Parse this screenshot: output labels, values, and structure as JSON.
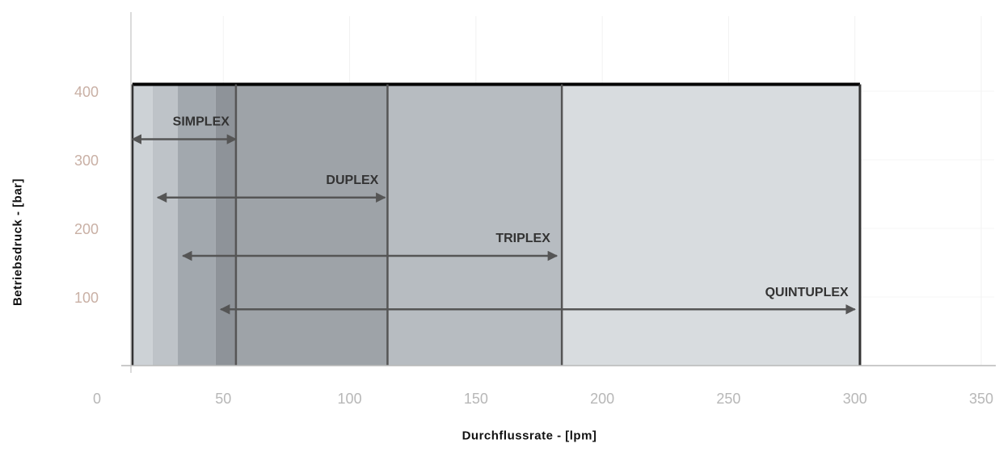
{
  "chart_data": {
    "type": "range",
    "title": "",
    "xlabel": "Durchflussrate - [lpm]",
    "ylabel": "Betriebsdruck - [bar]",
    "xlim": [
      0,
      350
    ],
    "ylim": [
      0,
      400
    ],
    "x_ticks": [
      "0",
      "50",
      "100",
      "150",
      "200",
      "250",
      "300",
      "350"
    ],
    "y_ticks": [
      "100",
      "200",
      "300",
      "400"
    ],
    "max_pressure": 410,
    "grid": true,
    "colors": {
      "x_tick": "#b7b7b7",
      "y_tick": "#c9b0a5",
      "frame": "#000000",
      "divider": "#555555",
      "arrow": "#555555",
      "label": "#333333",
      "background_zones": [
        "#cdd2d6",
        "#bec3c8",
        "#a2a8ae",
        "#8e9399",
        "#9ea3a8",
        "#b7bcc1",
        "#d8dcdf"
      ]
    },
    "zones": [
      {
        "from": 14,
        "to": 22,
        "shade": 0
      },
      {
        "from": 22,
        "to": 32,
        "shade": 1
      },
      {
        "from": 32,
        "to": 47,
        "shade": 2
      },
      {
        "from": 47,
        "to": 55,
        "shade": 3
      },
      {
        "from": 55,
        "to": 115,
        "shade": 4
      },
      {
        "from": 115,
        "to": 184,
        "shade": 5
      },
      {
        "from": 184,
        "to": 302,
        "shade": 6
      }
    ],
    "dividers": [
      55,
      115,
      184
    ],
    "series": [
      {
        "name": "SIMPLEX",
        "x_min": 14,
        "x_max": 55,
        "arrow_y": 330,
        "label_y": 350
      },
      {
        "name": "DUPLEX",
        "x_min": 24,
        "x_max": 114,
        "arrow_y": 245,
        "label_y": 265
      },
      {
        "name": "TRIPLEX",
        "x_min": 34,
        "x_max": 182,
        "arrow_y": 160,
        "label_y": 180
      },
      {
        "name": "QUINTUPLEX",
        "x_min": 49,
        "x_max": 300,
        "arrow_y": 82,
        "label_y": 101
      }
    ]
  }
}
